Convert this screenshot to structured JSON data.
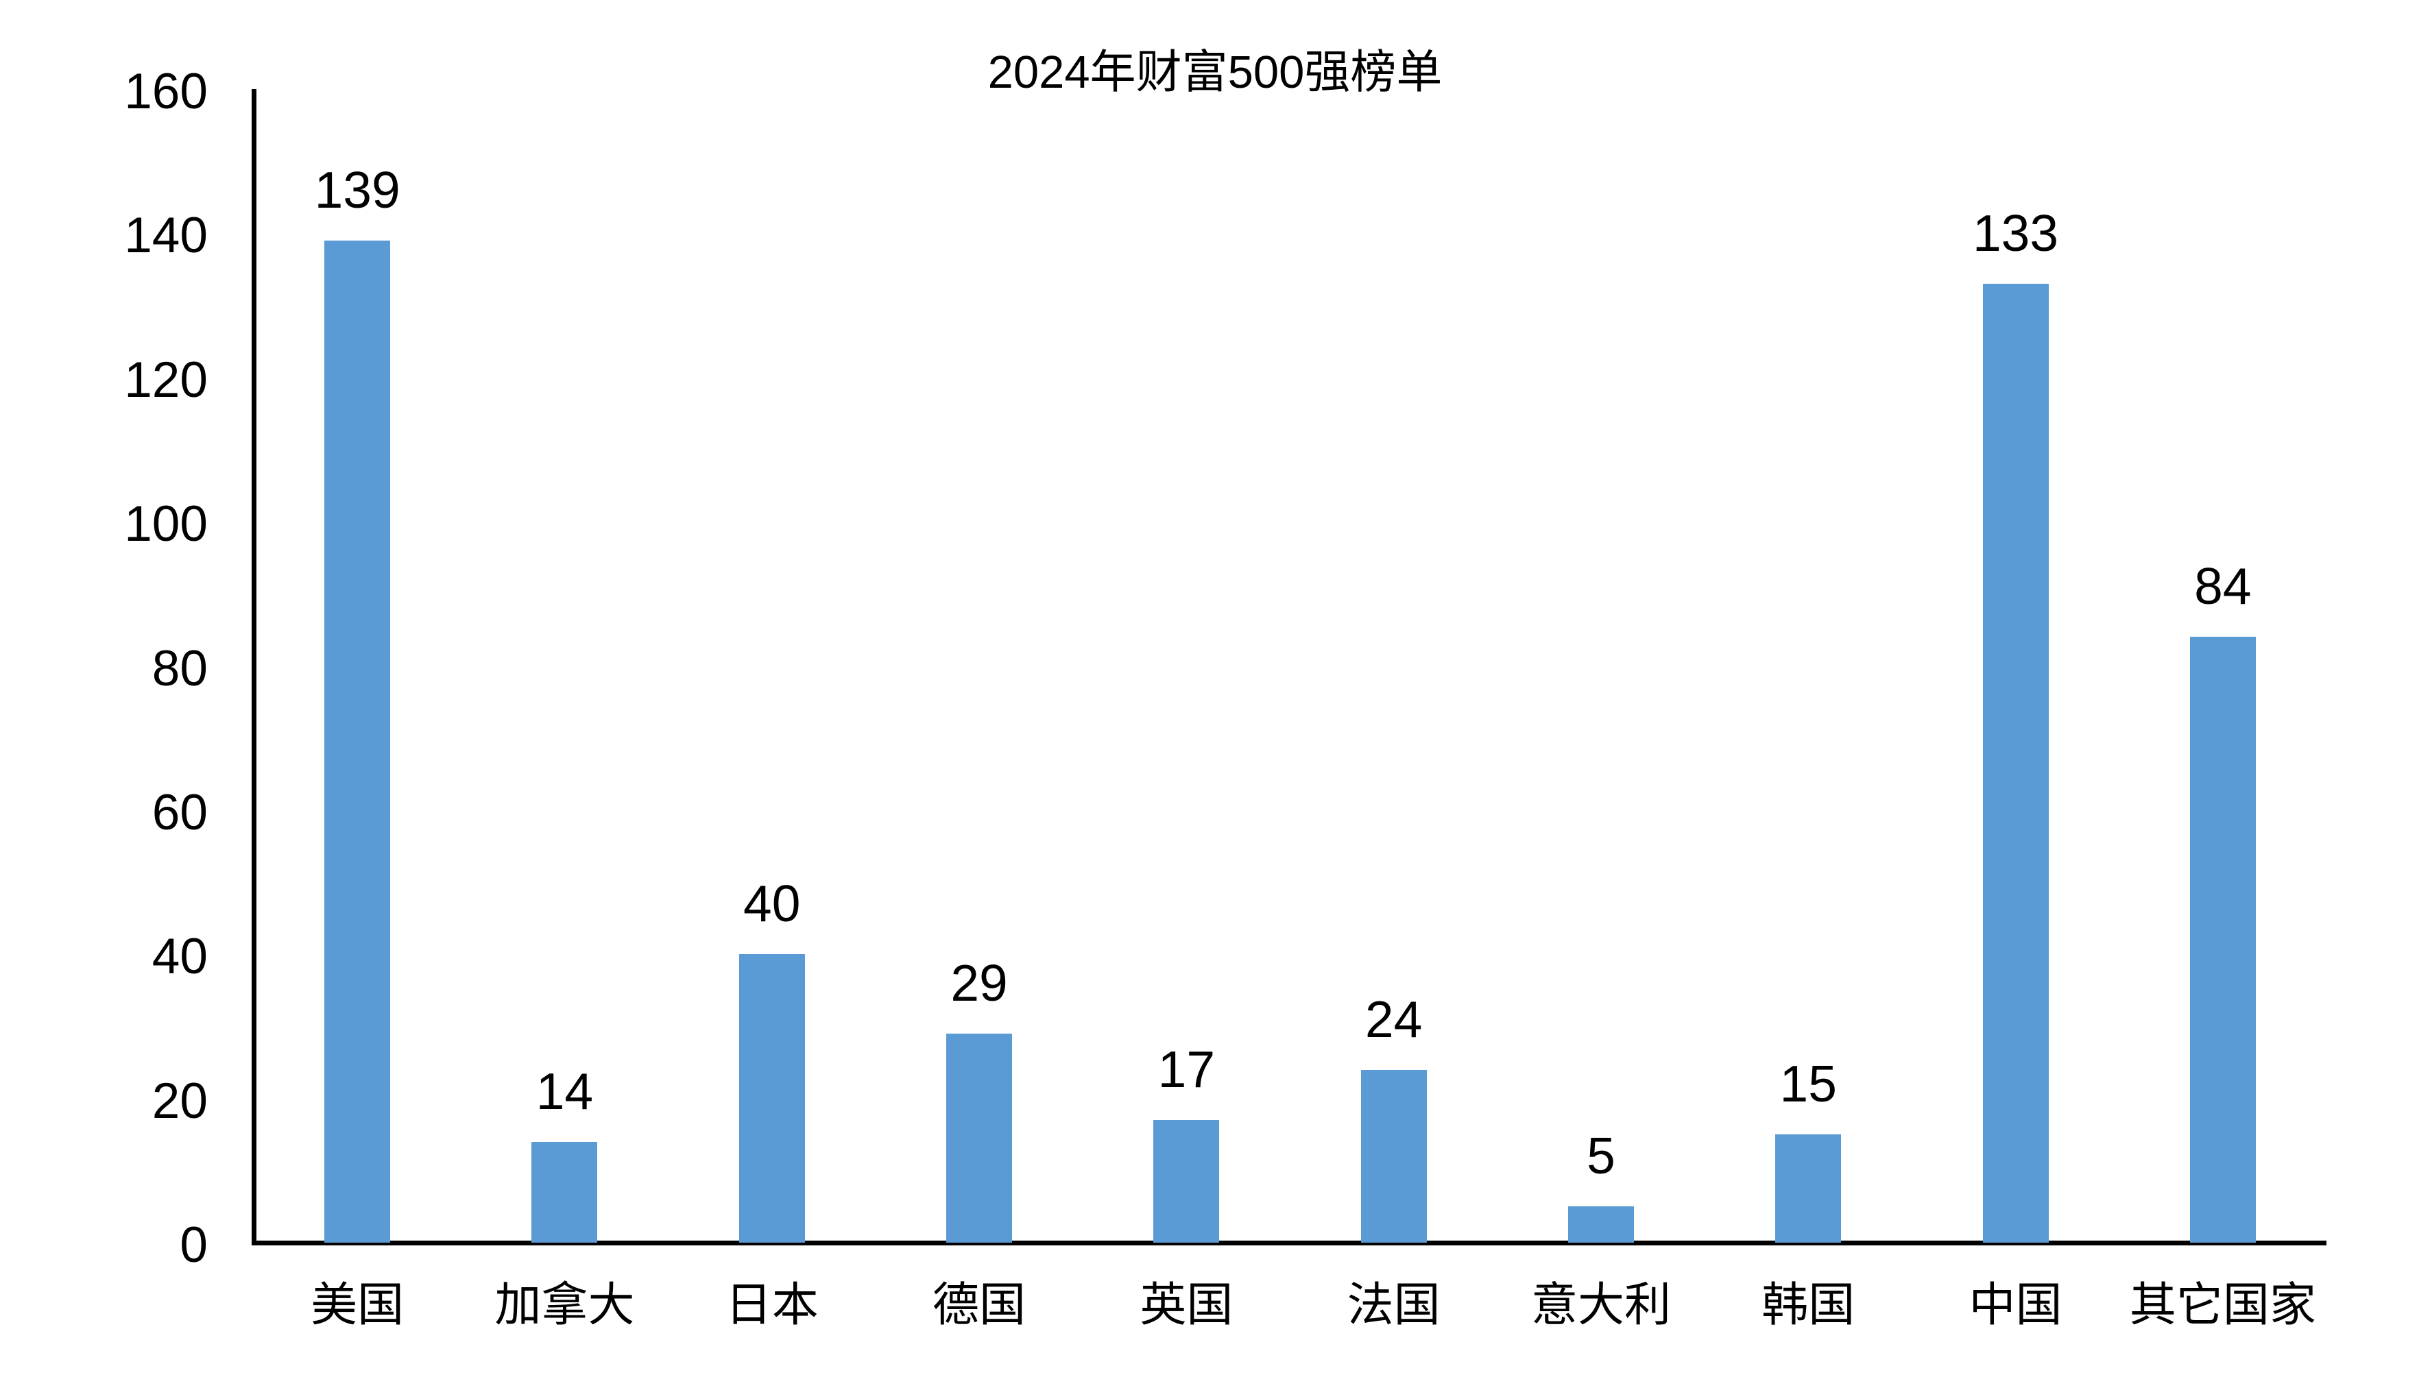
{
  "chart_data": {
    "type": "bar",
    "title": "2024年财富500强榜单",
    "categories": [
      "美国",
      "加拿大",
      "日本",
      "德国",
      "英国",
      "法国",
      "意大利",
      "韩国",
      "中国",
      "其它国家"
    ],
    "values": [
      139,
      14,
      40,
      29,
      17,
      24,
      5,
      15,
      133,
      84
    ],
    "xlabel": "",
    "ylabel": "",
    "ylim": [
      0,
      160
    ],
    "yticks": [
      0,
      20,
      40,
      60,
      80,
      100,
      120,
      140,
      160
    ],
    "grid": false,
    "legend": false,
    "data_labels": true,
    "bar_color": "#5B9BD5",
    "axis_color": "#000000",
    "text_color": "#000000",
    "background_color": "#FFFFFF"
  }
}
